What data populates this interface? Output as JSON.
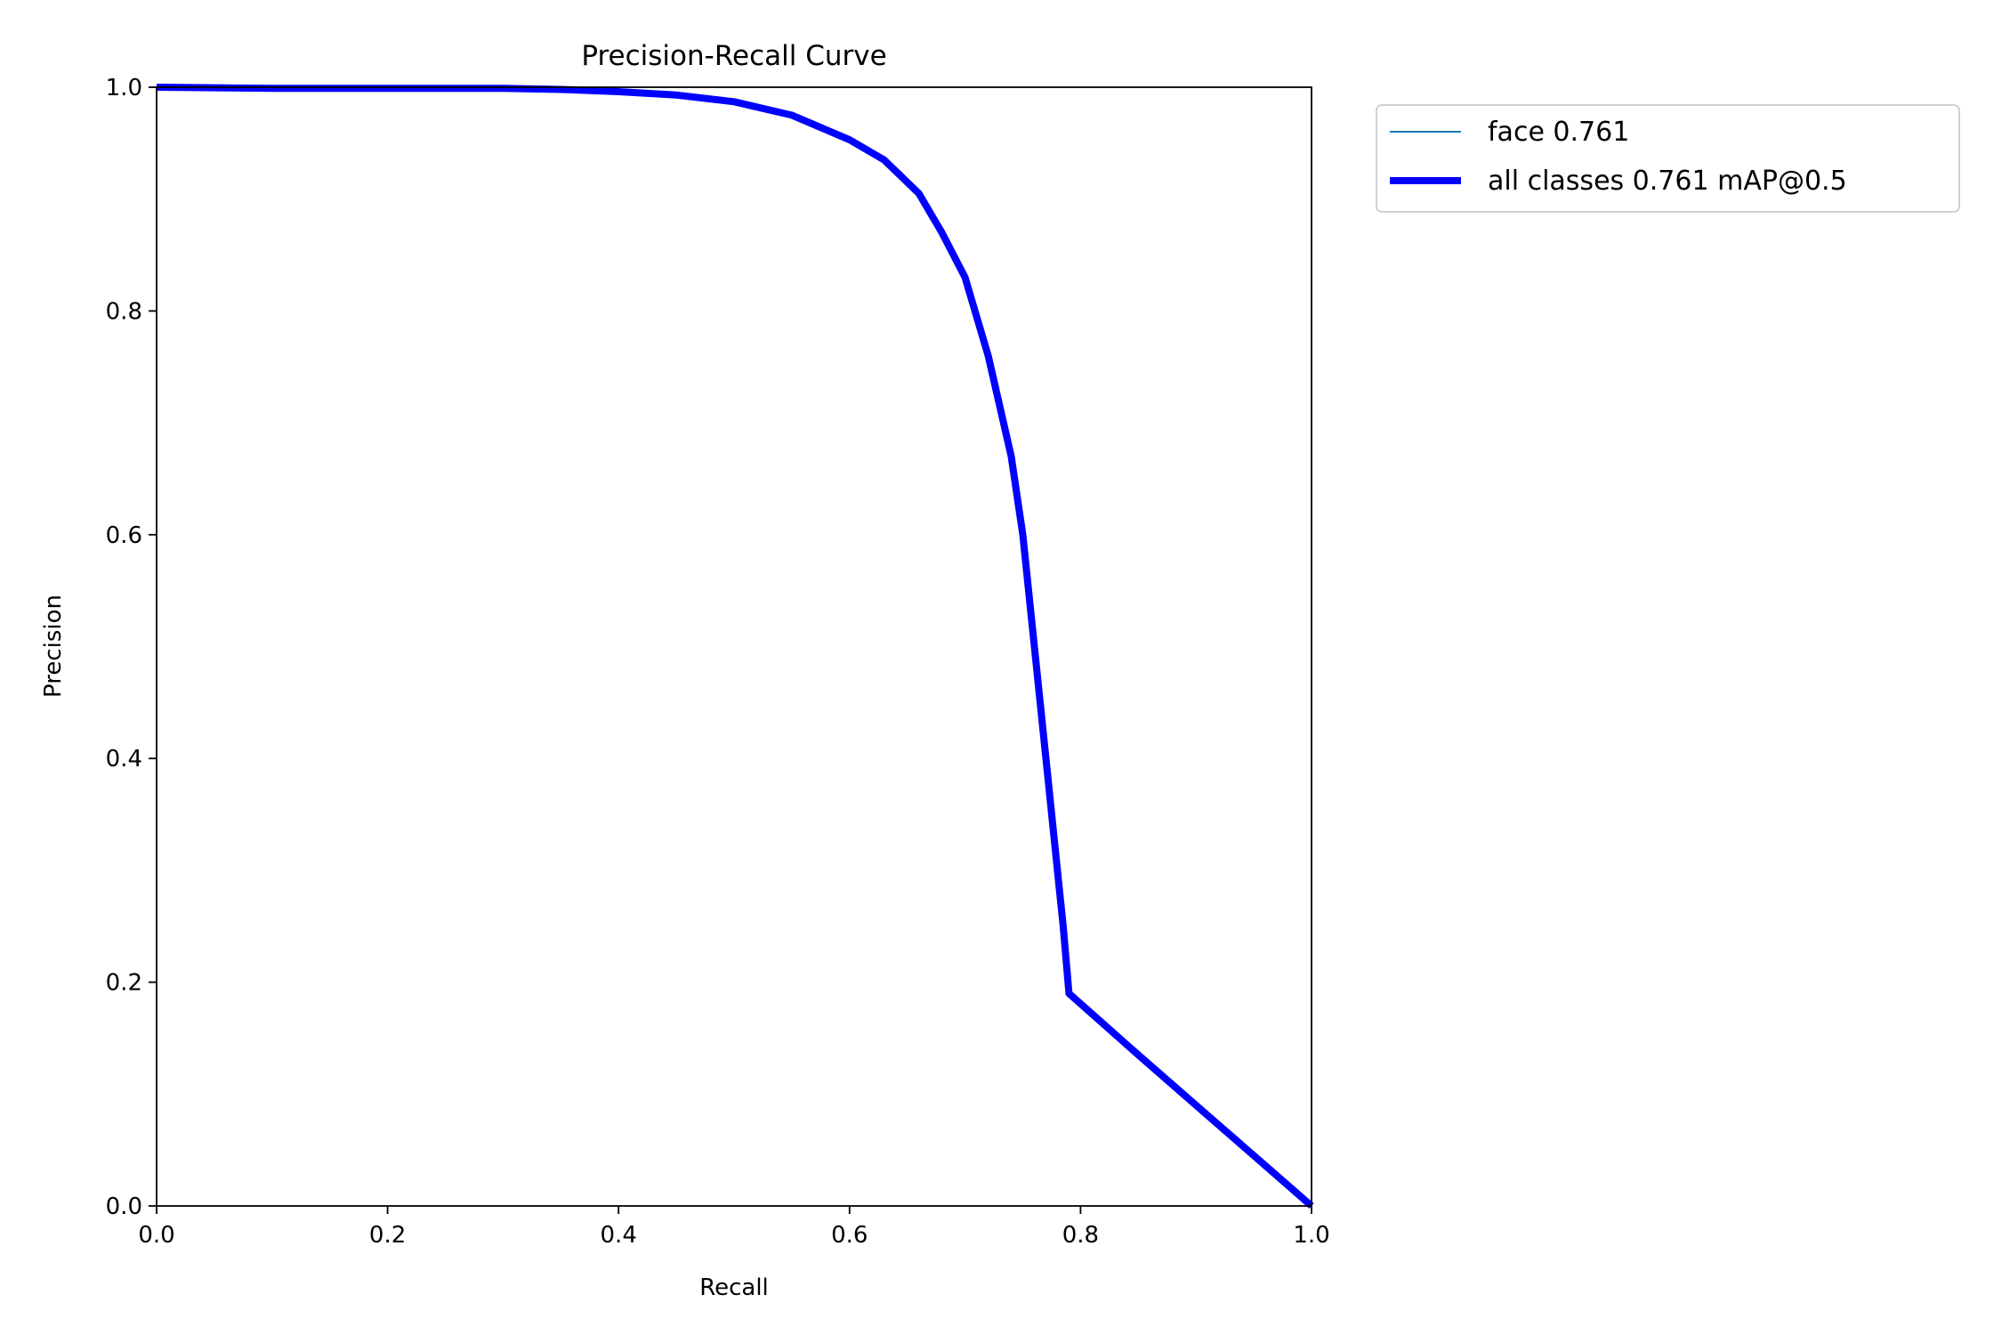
{
  "chart_data": {
    "type": "line",
    "title": "Precision-Recall Curve",
    "xlabel": "Recall",
    "ylabel": "Precision",
    "xlim": [
      0,
      1
    ],
    "ylim": [
      0,
      1
    ],
    "xticks": [
      "0.0",
      "0.2",
      "0.4",
      "0.6",
      "0.8",
      "1.0"
    ],
    "yticks": [
      "0.0",
      "0.2",
      "0.4",
      "0.6",
      "0.8",
      "1.0"
    ],
    "grid": false,
    "legend_placement": "outside-upper-right",
    "series": [
      {
        "name": "face 0.761",
        "color": "#1f77b4",
        "x": [
          0.0,
          0.1,
          0.2,
          0.3,
          0.35,
          0.4,
          0.45,
          0.5,
          0.55,
          0.6,
          0.63,
          0.66,
          0.68,
          0.7,
          0.72,
          0.74,
          0.75,
          0.76,
          0.77,
          0.78,
          0.785,
          0.79,
          0.85,
          0.9,
          0.95,
          1.0
        ],
        "y": [
          1.0,
          0.999,
          0.999,
          0.999,
          0.998,
          0.996,
          0.993,
          0.987,
          0.975,
          0.953,
          0.935,
          0.905,
          0.87,
          0.83,
          0.76,
          0.67,
          0.6,
          0.5,
          0.4,
          0.3,
          0.25,
          0.19,
          0.135,
          0.09,
          0.045,
          0.0
        ]
      },
      {
        "name": "all classes 0.761 mAP@0.5",
        "color": "#0000ff",
        "x": [
          0.0,
          0.1,
          0.2,
          0.3,
          0.35,
          0.4,
          0.45,
          0.5,
          0.55,
          0.6,
          0.63,
          0.66,
          0.68,
          0.7,
          0.72,
          0.74,
          0.75,
          0.76,
          0.77,
          0.78,
          0.785,
          0.79,
          0.85,
          0.9,
          0.95,
          1.0
        ],
        "y": [
          1.0,
          0.999,
          0.999,
          0.999,
          0.998,
          0.996,
          0.993,
          0.987,
          0.975,
          0.953,
          0.935,
          0.905,
          0.87,
          0.83,
          0.76,
          0.67,
          0.6,
          0.5,
          0.4,
          0.3,
          0.25,
          0.19,
          0.135,
          0.09,
          0.045,
          0.0
        ]
      }
    ]
  }
}
